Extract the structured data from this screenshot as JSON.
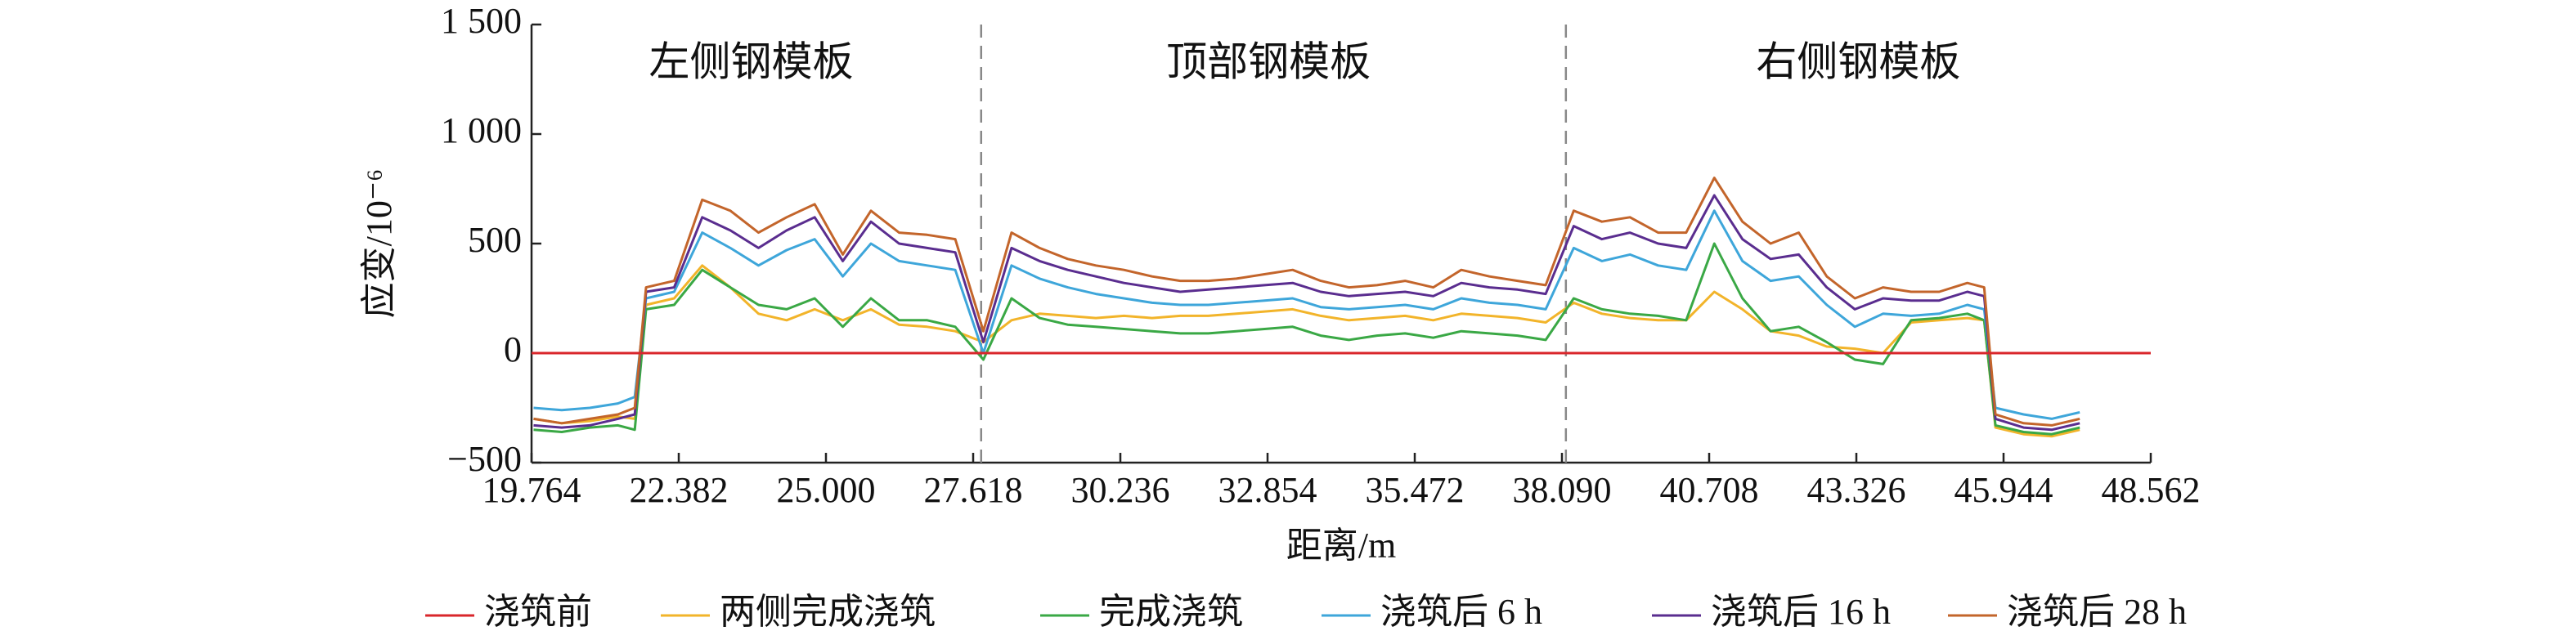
{
  "chart_data": {
    "type": "line",
    "xlabel": "距离/m",
    "ylabel": "应变/10⁻⁶",
    "xlim": [
      19.764,
      48.562
    ],
    "xticks": [
      19.764,
      22.382,
      {
        "value": 25,
        "label": "25.000"
      },
      27.618,
      30.236,
      32.854,
      35.472,
      {
        "value": 38.09,
        "label": "38.090"
      },
      40.708,
      43.326,
      45.944,
      48.562
    ],
    "ylim": [
      -500,
      1500
    ],
    "yticks": [
      {
        "value": -500,
        "label": "−500"
      },
      0,
      500,
      {
        "value": 1000,
        "label": "1 000"
      },
      {
        "value": 1500,
        "label": "1 500"
      }
    ],
    "dividers": [
      27.76,
      38.16
    ],
    "annotations": [
      {
        "text": "左侧钢模板",
        "x": 23.67,
        "y": 1310
      },
      {
        "text": "顶部钢模板",
        "x": 32.87,
        "y": 1310
      },
      {
        "text": "右侧钢模板",
        "x": 43.36,
        "y": 1310
      }
    ],
    "x": [
      19.8,
      20.3,
      20.8,
      21.3,
      21.6,
      21.8,
      22.3,
      22.8,
      23.3,
      23.8,
      24.3,
      24.8,
      25.3,
      25.8,
      26.3,
      26.8,
      27.3,
      27.8,
      28.3,
      28.8,
      29.3,
      29.8,
      30.3,
      30.8,
      31.3,
      31.8,
      32.3,
      32.8,
      33.3,
      33.8,
      34.3,
      34.8,
      35.3,
      35.8,
      36.3,
      36.8,
      37.3,
      37.8,
      38.3,
      38.8,
      39.3,
      39.8,
      40.3,
      40.8,
      41.3,
      41.8,
      42.3,
      42.8,
      43.3,
      43.8,
      44.3,
      44.8,
      45.3,
      45.6,
      45.8,
      46.3,
      46.8,
      47.3
    ],
    "series": [
      {
        "name": "浇筑前",
        "color": "#d9262b",
        "x": [
          19.764,
          48.562
        ],
        "values": [
          0,
          0
        ]
      },
      {
        "name": "两侧完成浇筑",
        "color": "#f2b42a",
        "values": [
          -300,
          -320,
          -310,
          -290,
          -300,
          220,
          250,
          400,
          300,
          180,
          150,
          200,
          150,
          200,
          130,
          120,
          100,
          50,
          150,
          180,
          170,
          160,
          170,
          160,
          170,
          170,
          180,
          190,
          200,
          170,
          150,
          160,
          170,
          150,
          180,
          170,
          160,
          140,
          230,
          180,
          160,
          150,
          150,
          280,
          200,
          100,
          80,
          30,
          20,
          0,
          140,
          150,
          160,
          150,
          -340,
          -370,
          -380,
          -350
        ]
      },
      {
        "name": "完成浇筑",
        "color": "#3aa845",
        "values": [
          -350,
          -360,
          -340,
          -330,
          -350,
          200,
          220,
          380,
          300,
          220,
          200,
          250,
          120,
          250,
          150,
          150,
          120,
          -30,
          250,
          160,
          130,
          120,
          110,
          100,
          90,
          90,
          100,
          110,
          120,
          80,
          60,
          80,
          90,
          70,
          100,
          90,
          80,
          60,
          250,
          200,
          180,
          170,
          150,
          500,
          250,
          100,
          120,
          50,
          -30,
          -50,
          150,
          160,
          180,
          150,
          -330,
          -360,
          -370,
          -340
        ]
      },
      {
        "name": "浇筑后 6 h",
        "color": "#3ea6da",
        "values": [
          -250,
          -260,
          -250,
          -230,
          -200,
          250,
          280,
          550,
          480,
          400,
          470,
          520,
          350,
          500,
          420,
          400,
          380,
          0,
          400,
          340,
          300,
          270,
          250,
          230,
          220,
          220,
          230,
          240,
          250,
          210,
          200,
          210,
          220,
          200,
          250,
          230,
          220,
          200,
          480,
          420,
          450,
          400,
          380,
          650,
          420,
          330,
          350,
          220,
          120,
          180,
          170,
          180,
          220,
          200,
          -250,
          -280,
          -300,
          -270
        ]
      },
      {
        "name": "浇筑后 16 h",
        "color": "#5a2d8f",
        "values": [
          -330,
          -340,
          -330,
          -300,
          -280,
          280,
          300,
          620,
          560,
          480,
          560,
          620,
          420,
          600,
          500,
          480,
          460,
          50,
          480,
          420,
          380,
          350,
          320,
          300,
          280,
          290,
          300,
          310,
          320,
          280,
          260,
          270,
          280,
          260,
          320,
          300,
          290,
          270,
          580,
          520,
          550,
          500,
          480,
          720,
          520,
          430,
          450,
          300,
          200,
          250,
          240,
          240,
          280,
          260,
          -300,
          -340,
          -350,
          -320
        ]
      },
      {
        "name": "浇筑后 28 h",
        "color": "#c3652b",
        "values": [
          -300,
          -320,
          -300,
          -280,
          -250,
          300,
          330,
          700,
          650,
          550,
          620,
          680,
          450,
          650,
          550,
          540,
          520,
          100,
          550,
          480,
          430,
          400,
          380,
          350,
          330,
          330,
          340,
          360,
          380,
          330,
          300,
          310,
          330,
          300,
          380,
          350,
          330,
          310,
          650,
          600,
          620,
          550,
          550,
          800,
          600,
          500,
          550,
          350,
          250,
          300,
          280,
          280,
          320,
          300,
          -280,
          -320,
          -330,
          -300
        ]
      }
    ]
  }
}
